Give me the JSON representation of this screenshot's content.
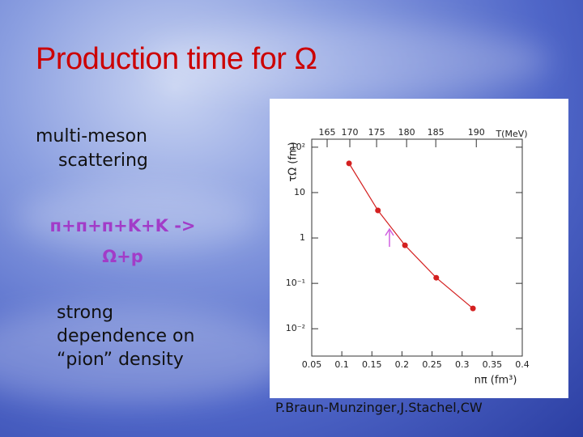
{
  "slide": {
    "title": "Production time for Ω",
    "bullets": [
      "multi-meson scattering",
      "п+п+п+K+K -> Ω+p",
      "strong dependence on “pion” density"
    ],
    "credit": "P.Braun-Munzinger,J.Stachel,CW"
  },
  "chart_data": {
    "type": "line",
    "xlabel": "nπ (fm³)",
    "ylabel": "τΩ (fm)",
    "x2label": "T(MeV)",
    "x": [
      0.112,
      0.16,
      0.205,
      0.257,
      0.318
    ],
    "series": [
      {
        "color": "#d42020",
        "values": [
          44,
          4.05,
          0.69,
          0.133,
          0.028
        ]
      }
    ],
    "xlim": [
      0.05,
      0.4
    ],
    "xticks": [
      0.05,
      0.1,
      0.15,
      0.2,
      0.25,
      0.3,
      0.35,
      0.4
    ],
    "x2ticks": [
      {
        "value": 0.0756,
        "label": "165"
      },
      {
        "value": 0.1133,
        "label": "170"
      },
      {
        "value": 0.1578,
        "label": "175"
      },
      {
        "value": 0.2077,
        "label": "180"
      },
      {
        "value": 0.2562,
        "label": "185"
      },
      {
        "value": 0.3236,
        "label": "190"
      }
    ],
    "ylim": [
      0.0025,
      150
    ],
    "ylog": true,
    "yticks": [
      {
        "value": 100,
        "label": "10²"
      },
      10,
      1,
      {
        "value": 0.1,
        "label": "10⁻¹"
      },
      {
        "value": 0.01,
        "label": "10⁻²"
      }
    ]
  }
}
